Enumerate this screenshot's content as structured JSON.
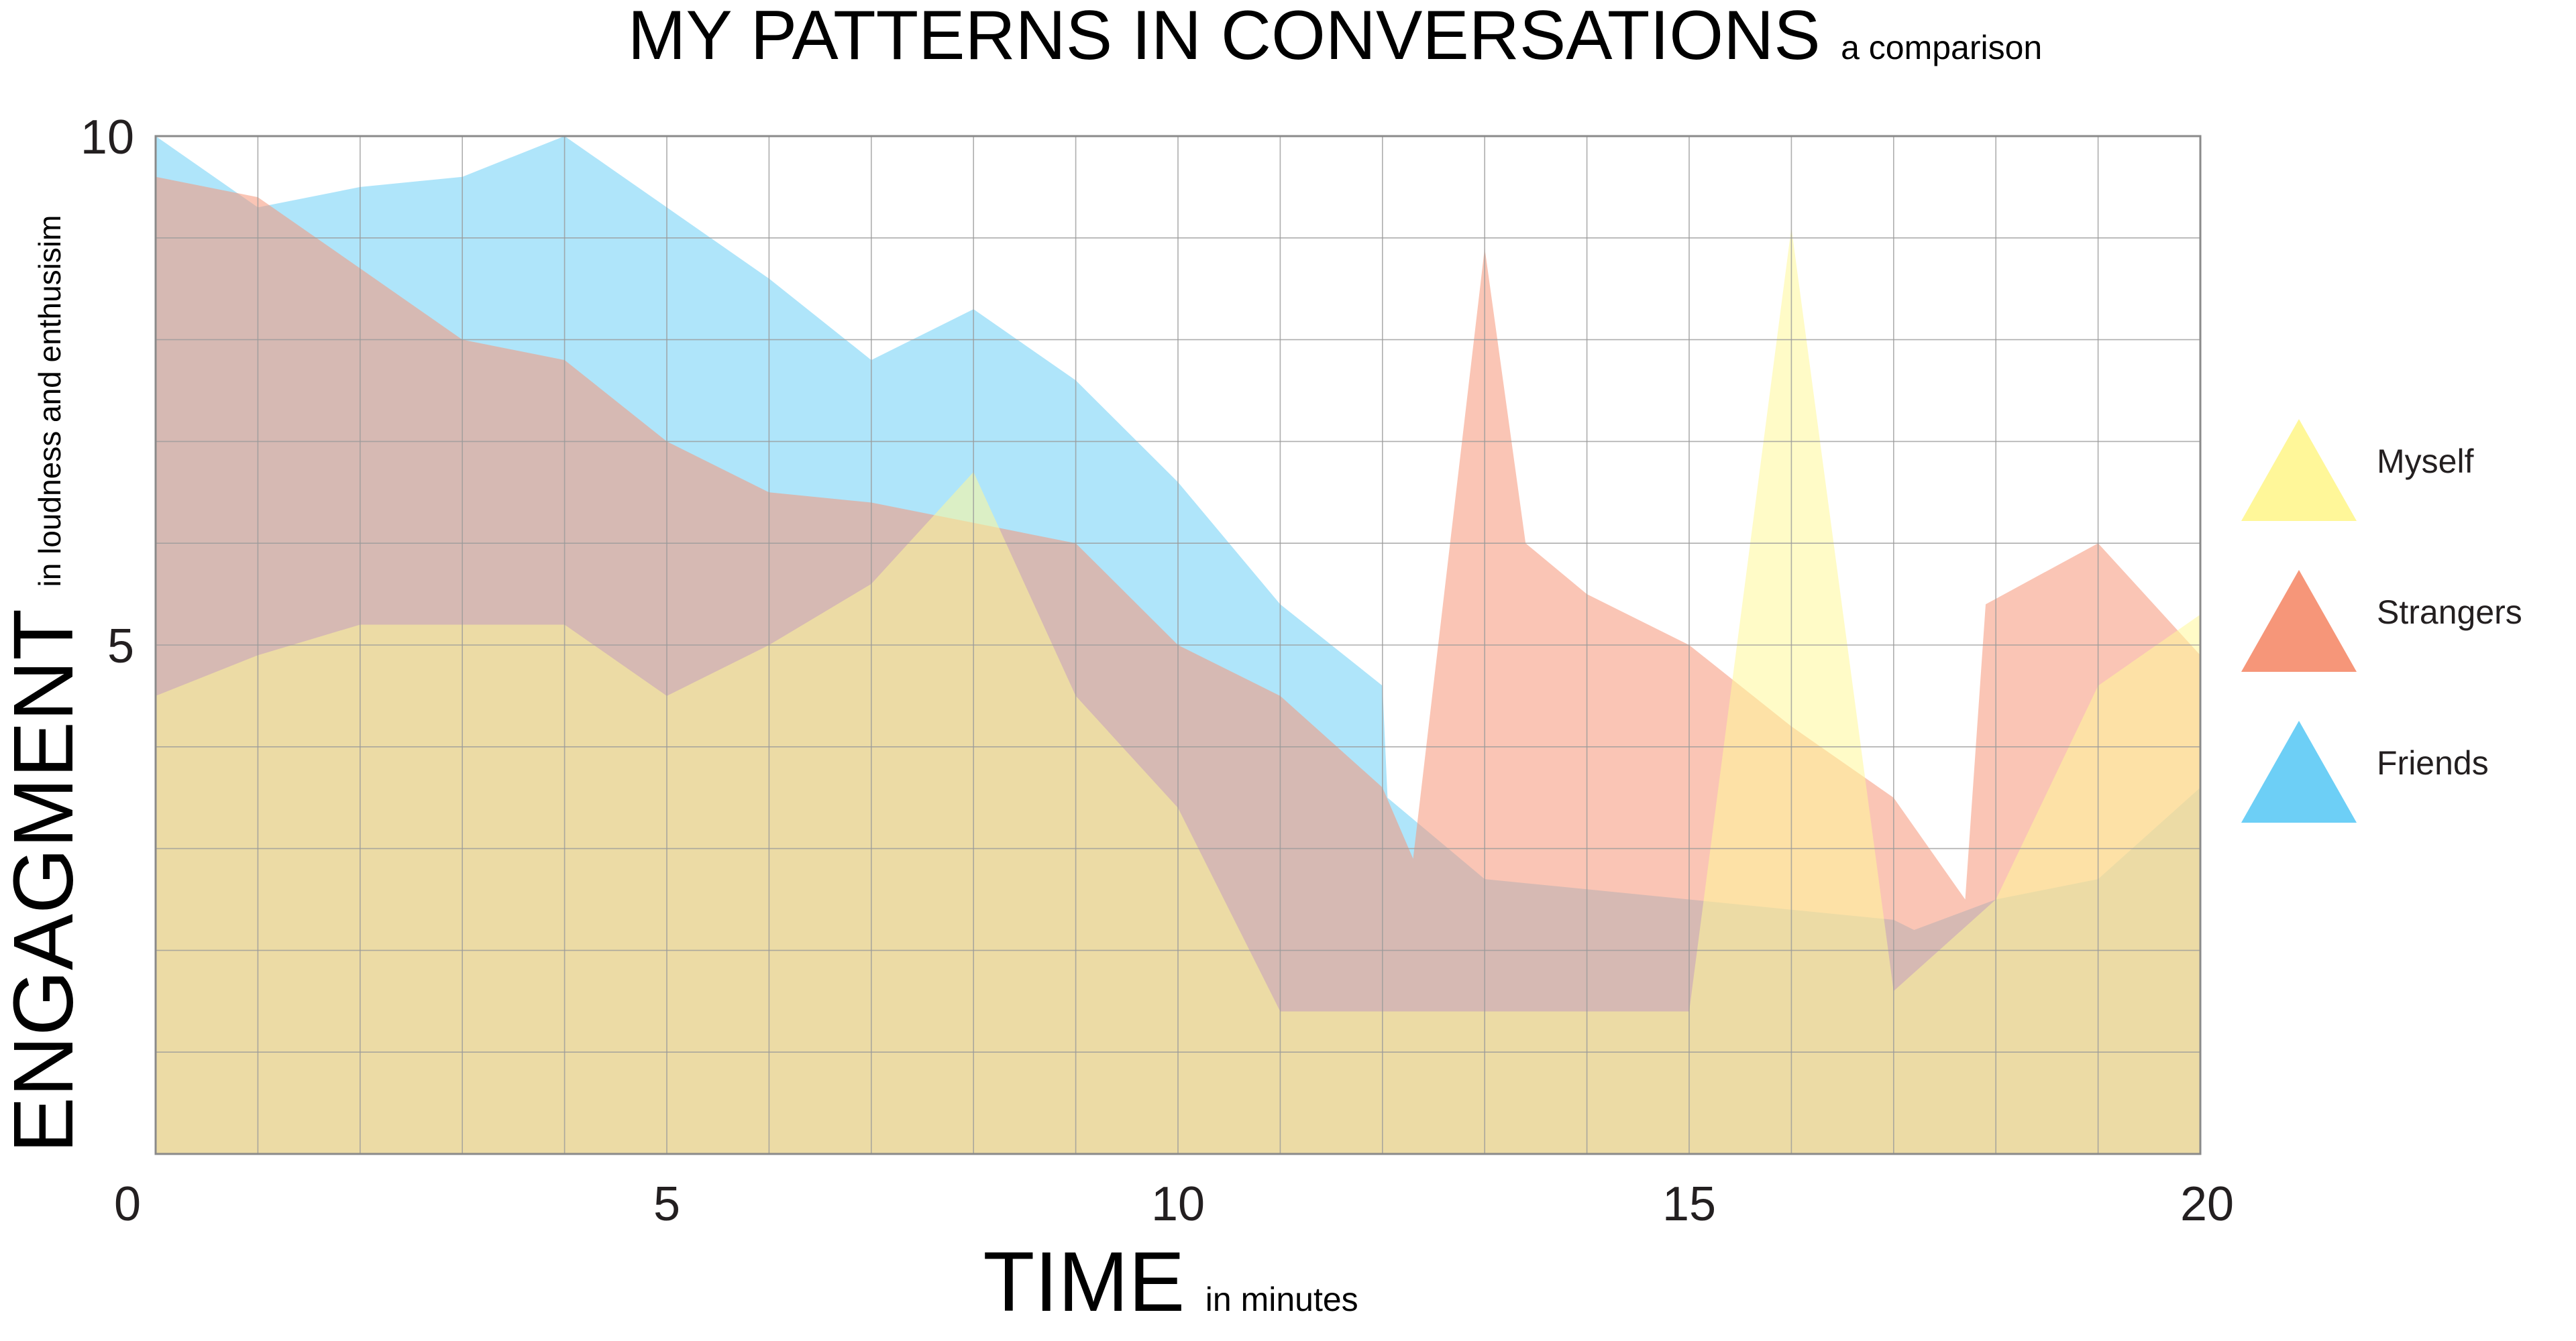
{
  "chart_data": {
    "type": "area",
    "title": "MY PATTERNS IN CONVERSATIONS",
    "subtitle": "a comparison",
    "xlabel": "TIME",
    "xlabel_sub": "in minutes",
    "ylabel": "ENGAGMENT",
    "ylabel_sub": "in loudness and enthusisim",
    "xlim": [
      0,
      20
    ],
    "ylim": [
      0,
      10
    ],
    "x_ticks": [
      "0",
      "5",
      "10",
      "15",
      "20"
    ],
    "y_ticks": [
      "5",
      "10"
    ],
    "grid": true,
    "legend_position": "right",
    "series": [
      {
        "name": "Friends",
        "color": "#6dcff6",
        "points": [
          [
            0,
            10
          ],
          [
            1,
            9.3
          ],
          [
            2,
            9.5
          ],
          [
            3,
            9.6
          ],
          [
            4,
            10
          ],
          [
            5,
            9.3
          ],
          [
            6,
            8.6
          ],
          [
            7,
            7.8
          ],
          [
            8,
            8.3
          ],
          [
            9,
            7.6
          ],
          [
            10,
            6.6
          ],
          [
            11,
            5.4
          ],
          [
            12,
            4.6
          ],
          [
            12.05,
            3.5
          ],
          [
            13,
            2.7
          ],
          [
            14,
            2.6
          ],
          [
            15,
            2.5
          ],
          [
            16,
            2.4
          ],
          [
            17,
            2.3
          ],
          [
            17.2,
            2.2
          ],
          [
            18,
            2.5
          ],
          [
            19,
            2.7
          ],
          [
            20,
            3.6
          ]
        ]
      },
      {
        "name": "Strangers",
        "color": "#f69679",
        "points": [
          [
            0,
            9.6
          ],
          [
            1,
            9.4
          ],
          [
            2,
            8.7
          ],
          [
            3,
            8
          ],
          [
            4,
            7.8
          ],
          [
            5,
            7
          ],
          [
            6,
            6.5
          ],
          [
            7,
            6.4
          ],
          [
            8,
            6.2
          ],
          [
            9,
            6
          ],
          [
            10,
            5
          ],
          [
            11,
            4.5
          ],
          [
            12,
            3.6
          ],
          [
            12.3,
            2.9
          ],
          [
            13,
            8.9
          ],
          [
            13.4,
            6
          ],
          [
            14,
            5.5
          ],
          [
            15,
            5
          ],
          [
            16,
            4.2
          ],
          [
            17,
            3.5
          ],
          [
            17.7,
            2.5
          ],
          [
            17.9,
            5.4
          ],
          [
            19,
            6
          ],
          [
            20,
            4.9
          ]
        ]
      },
      {
        "name": "Myself",
        "color": "#fff799",
        "points": [
          [
            0,
            4.5
          ],
          [
            1,
            4.9
          ],
          [
            2,
            5.2
          ],
          [
            3,
            5.2
          ],
          [
            4,
            5.2
          ],
          [
            5,
            4.5
          ],
          [
            6,
            5
          ],
          [
            7,
            5.6
          ],
          [
            8,
            6.7
          ],
          [
            9,
            4.5
          ],
          [
            10,
            3.4
          ],
          [
            11,
            1.4
          ],
          [
            12,
            1.4
          ],
          [
            13,
            1.4
          ],
          [
            14,
            1.4
          ],
          [
            15,
            1.4
          ],
          [
            16,
            9.1
          ],
          [
            17,
            1.6
          ],
          [
            18,
            2.5
          ],
          [
            19,
            4.6
          ],
          [
            20,
            5.3
          ]
        ]
      }
    ]
  }
}
